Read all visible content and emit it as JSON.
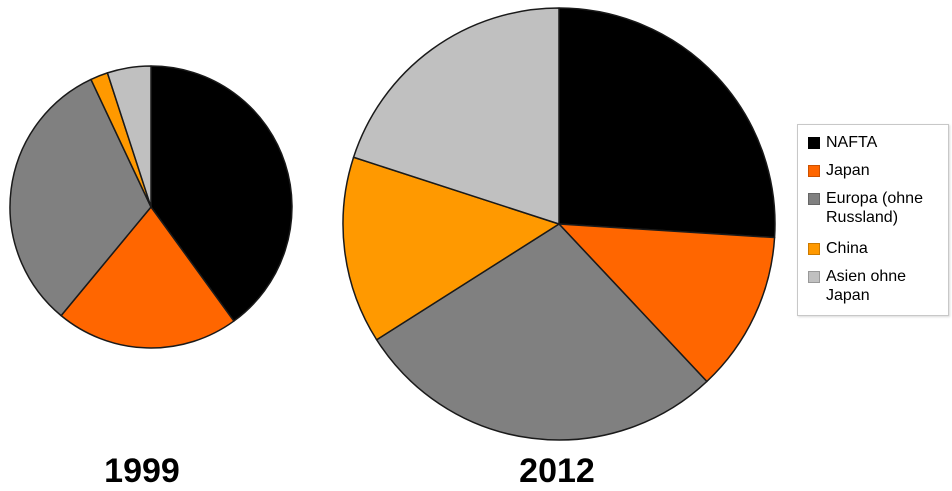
{
  "chart_data": [
    {
      "type": "pie",
      "year_label": "1999",
      "categories": [
        "NAFTA",
        "Japan",
        "Europa (ohne Russland)",
        "China",
        "Asien ohne Japan"
      ],
      "values": [
        40,
        21,
        32,
        2,
        5
      ],
      "colors": [
        "#000000",
        "#ff6600",
        "#808080",
        "#ff9900",
        "#c0c0c0"
      ],
      "start_angle_deg": 0,
      "direction": "clockwise"
    },
    {
      "type": "pie",
      "year_label": "2012",
      "categories": [
        "NAFTA",
        "Japan",
        "Europa (ohne Russland)",
        "China",
        "Asien ohne Japan"
      ],
      "values": [
        26,
        12,
        28,
        14,
        20
      ],
      "colors": [
        "#000000",
        "#ff6600",
        "#808080",
        "#ff9900",
        "#c0c0c0"
      ],
      "start_angle_deg": 0,
      "direction": "clockwise"
    }
  ],
  "legend": {
    "placement": "right",
    "items": [
      {
        "label": "NAFTA",
        "color": "#000000"
      },
      {
        "label": "Japan",
        "color": "#ff6600"
      },
      {
        "label": "Europa (ohne Russland)",
        "color": "#808080"
      },
      {
        "label": "China",
        "color": "#ff9900"
      },
      {
        "label": "Asien ohne Japan",
        "color": "#c0c0c0"
      }
    ]
  }
}
